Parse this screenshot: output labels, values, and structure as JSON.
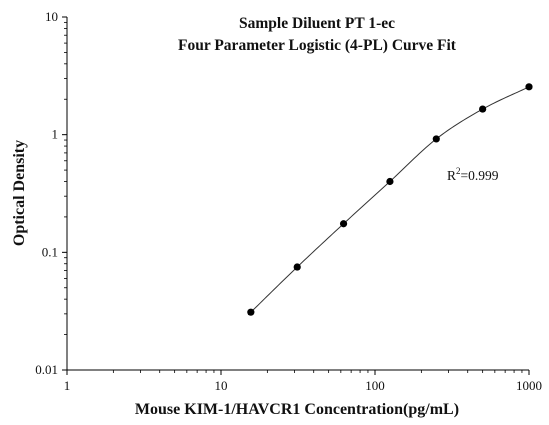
{
  "chart_data": {
    "type": "scatter",
    "title": "Sample Diluent PT 1-ec",
    "subtitle": "Four Parameter Logistic (4-PL) Curve Fit",
    "xlabel": "Mouse KIM-1/HAVCR1 Concentration(pg/mL)",
    "ylabel": "Optical Density",
    "x_scale": "log",
    "y_scale": "log",
    "xlim": [
      1,
      1000
    ],
    "ylim": [
      0.01,
      10
    ],
    "x_ticks": [
      "1",
      "10",
      "100",
      "1000"
    ],
    "y_ticks": [
      "0.01",
      "0.1",
      "1",
      "10"
    ],
    "grid": false,
    "legend": "none",
    "annotation": {
      "text": "R",
      "superscript": "2",
      "suffix": "=0.999"
    },
    "series": [
      {
        "x": [
          15.625,
          31.25,
          62.5,
          125,
          250,
          500,
          1000
        ],
        "y": [
          0.031,
          0.075,
          0.175,
          0.4,
          0.92,
          1.65,
          2.55
        ]
      }
    ],
    "curve": {
      "model": "4PL",
      "x_range": [
        15,
        1000
      ]
    },
    "colors": {
      "points": "#000000",
      "curve": "#333333",
      "axes": "#000000"
    }
  }
}
